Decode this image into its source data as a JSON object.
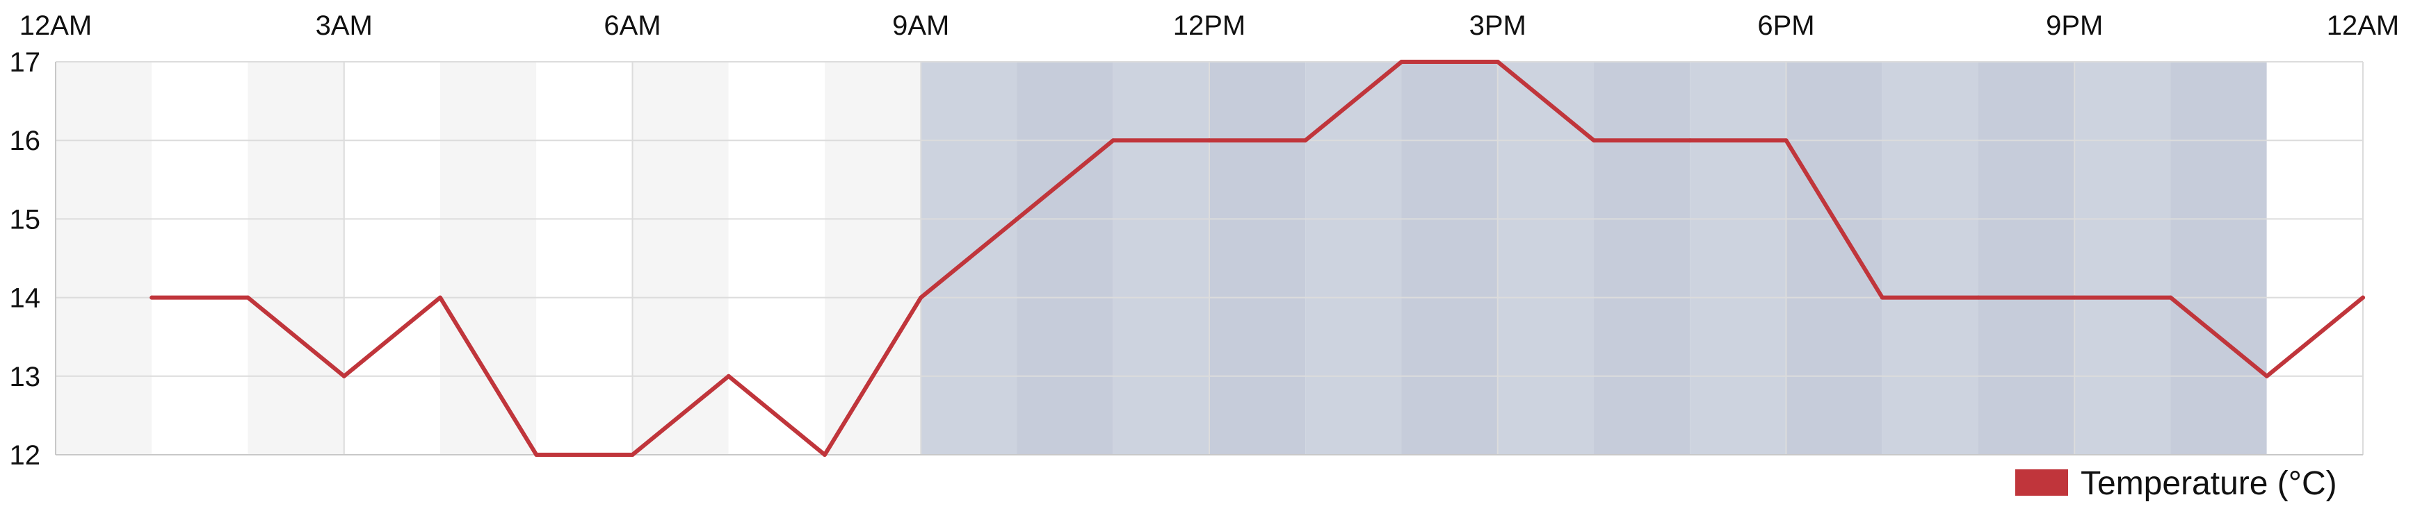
{
  "chart_data": {
    "type": "line",
    "x_tick_labels": [
      "12AM",
      "3AM",
      "6AM",
      "9AM",
      "12PM",
      "3PM",
      "6PM",
      "9PM",
      "12AM"
    ],
    "y_ticks": [
      12,
      13,
      14,
      15,
      16,
      17
    ],
    "ylim": [
      12,
      17
    ],
    "x_hours": [
      1,
      2,
      3,
      4,
      5,
      6,
      7,
      8,
      9,
      10,
      11,
      12,
      13,
      14,
      15,
      16,
      17,
      18,
      19,
      20,
      21,
      22,
      23,
      24
    ],
    "series": [
      {
        "name": "Temperature (°C)",
        "color": "#c0353b",
        "values": [
          14,
          14,
          13,
          14,
          12,
          12,
          13,
          12,
          14,
          15,
          16,
          16,
          16,
          17,
          17,
          16,
          16,
          16,
          14,
          14,
          14,
          14,
          13,
          14
        ]
      }
    ],
    "background_bands": {
      "night_colors": [
        "#f5f5f5",
        "#ffffff"
      ],
      "day_colors": [
        "#c6ccda",
        "#cdd3df"
      ],
      "day_start_hour": 9,
      "day_end_hour": 23
    },
    "grid": true,
    "legend": {
      "position": "bottom-right",
      "label": "Temperature (°C)",
      "color": "#c0353b"
    }
  }
}
